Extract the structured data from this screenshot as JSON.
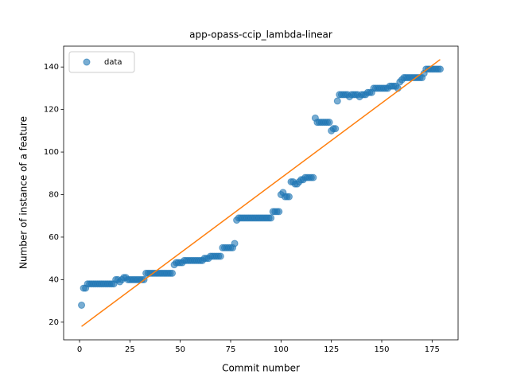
{
  "chart_data": {
    "type": "scatter",
    "title": "app-opass-ccip_lambda-linear",
    "xlabel": "Commit number",
    "ylabel": "Number of instance of a feature",
    "xlim": [
      -7.9,
      187.9
    ],
    "xticks": [
      0,
      25,
      50,
      75,
      100,
      125,
      150,
      175
    ],
    "ylim": [
      11.7,
      149.8
    ],
    "yticks": [
      20,
      40,
      60,
      80,
      100,
      120,
      140
    ],
    "legend": "upper left",
    "series": [
      {
        "name": "data",
        "type": "scatter",
        "color": "#1f77b4",
        "x": [
          1,
          2,
          3,
          4,
          5,
          6,
          7,
          8,
          9,
          10,
          11,
          12,
          13,
          14,
          15,
          16,
          17,
          18,
          19,
          20,
          21,
          22,
          23,
          24,
          25,
          26,
          27,
          28,
          29,
          30,
          31,
          32,
          33,
          34,
          35,
          36,
          37,
          38,
          39,
          40,
          41,
          42,
          43,
          44,
          45,
          46,
          47,
          48,
          49,
          50,
          51,
          52,
          53,
          54,
          55,
          56,
          57,
          58,
          59,
          60,
          61,
          62,
          63,
          64,
          65,
          66,
          67,
          68,
          69,
          70,
          71,
          72,
          73,
          74,
          75,
          76,
          77,
          78,
          79,
          80,
          81,
          82,
          83,
          84,
          85,
          86,
          87,
          88,
          89,
          90,
          91,
          92,
          93,
          94,
          95,
          96,
          97,
          98,
          99,
          100,
          101,
          102,
          103,
          104,
          105,
          106,
          107,
          108,
          109,
          110,
          111,
          112,
          113,
          114,
          115,
          116,
          117,
          118,
          119,
          120,
          121,
          122,
          123,
          124,
          125,
          126,
          127,
          128,
          129,
          130,
          131,
          132,
          133,
          134,
          135,
          136,
          137,
          138,
          139,
          140,
          141,
          142,
          143,
          144,
          145,
          146,
          147,
          148,
          149,
          150,
          151,
          152,
          153,
          154,
          155,
          156,
          157,
          158,
          159,
          160,
          161,
          162,
          163,
          164,
          165,
          166,
          167,
          168,
          169,
          170,
          171,
          172,
          173,
          174,
          175,
          176,
          177,
          178,
          179
        ],
        "values": [
          28,
          36,
          36,
          38,
          38,
          38,
          38,
          38,
          38,
          38,
          38,
          38,
          38,
          38,
          38,
          38,
          38,
          40,
          40,
          39,
          40,
          41,
          41,
          40,
          40,
          40,
          40,
          40,
          40,
          40,
          40,
          40,
          43,
          43,
          43,
          43,
          43,
          43,
          43,
          43,
          43,
          43,
          43,
          43,
          43,
          43,
          47,
          48,
          48,
          48,
          48,
          49,
          49,
          49,
          49,
          49,
          49,
          49,
          49,
          49,
          49,
          50,
          50,
          50,
          51,
          51,
          51,
          51,
          51,
          51,
          55,
          55,
          55,
          55,
          55,
          55,
          57,
          68,
          69,
          69,
          69,
          69,
          69,
          69,
          69,
          69,
          69,
          69,
          69,
          69,
          69,
          69,
          69,
          69,
          69,
          72,
          72,
          72,
          72,
          80,
          81,
          79,
          79,
          79,
          86,
          86,
          85,
          85,
          86,
          87,
          87,
          88,
          88,
          88,
          88,
          88,
          116,
          114,
          114,
          114,
          114,
          114,
          114,
          114,
          110,
          111,
          111,
          124,
          127,
          127,
          127,
          127,
          127,
          126,
          127,
          127,
          127,
          127,
          126,
          127,
          127,
          127,
          128,
          128,
          128,
          130,
          130,
          130,
          130,
          130,
          130,
          130,
          130,
          131,
          131,
          131,
          131,
          130,
          133,
          134,
          135,
          135,
          135,
          135,
          135,
          135,
          135,
          135,
          135,
          135,
          137,
          139,
          139,
          139,
          139,
          139,
          139,
          139,
          139
        ]
      },
      {
        "type": "line",
        "color": "#ff7f0e",
        "x": [
          1,
          179
        ],
        "values": [
          18,
          143.5
        ]
      }
    ]
  }
}
